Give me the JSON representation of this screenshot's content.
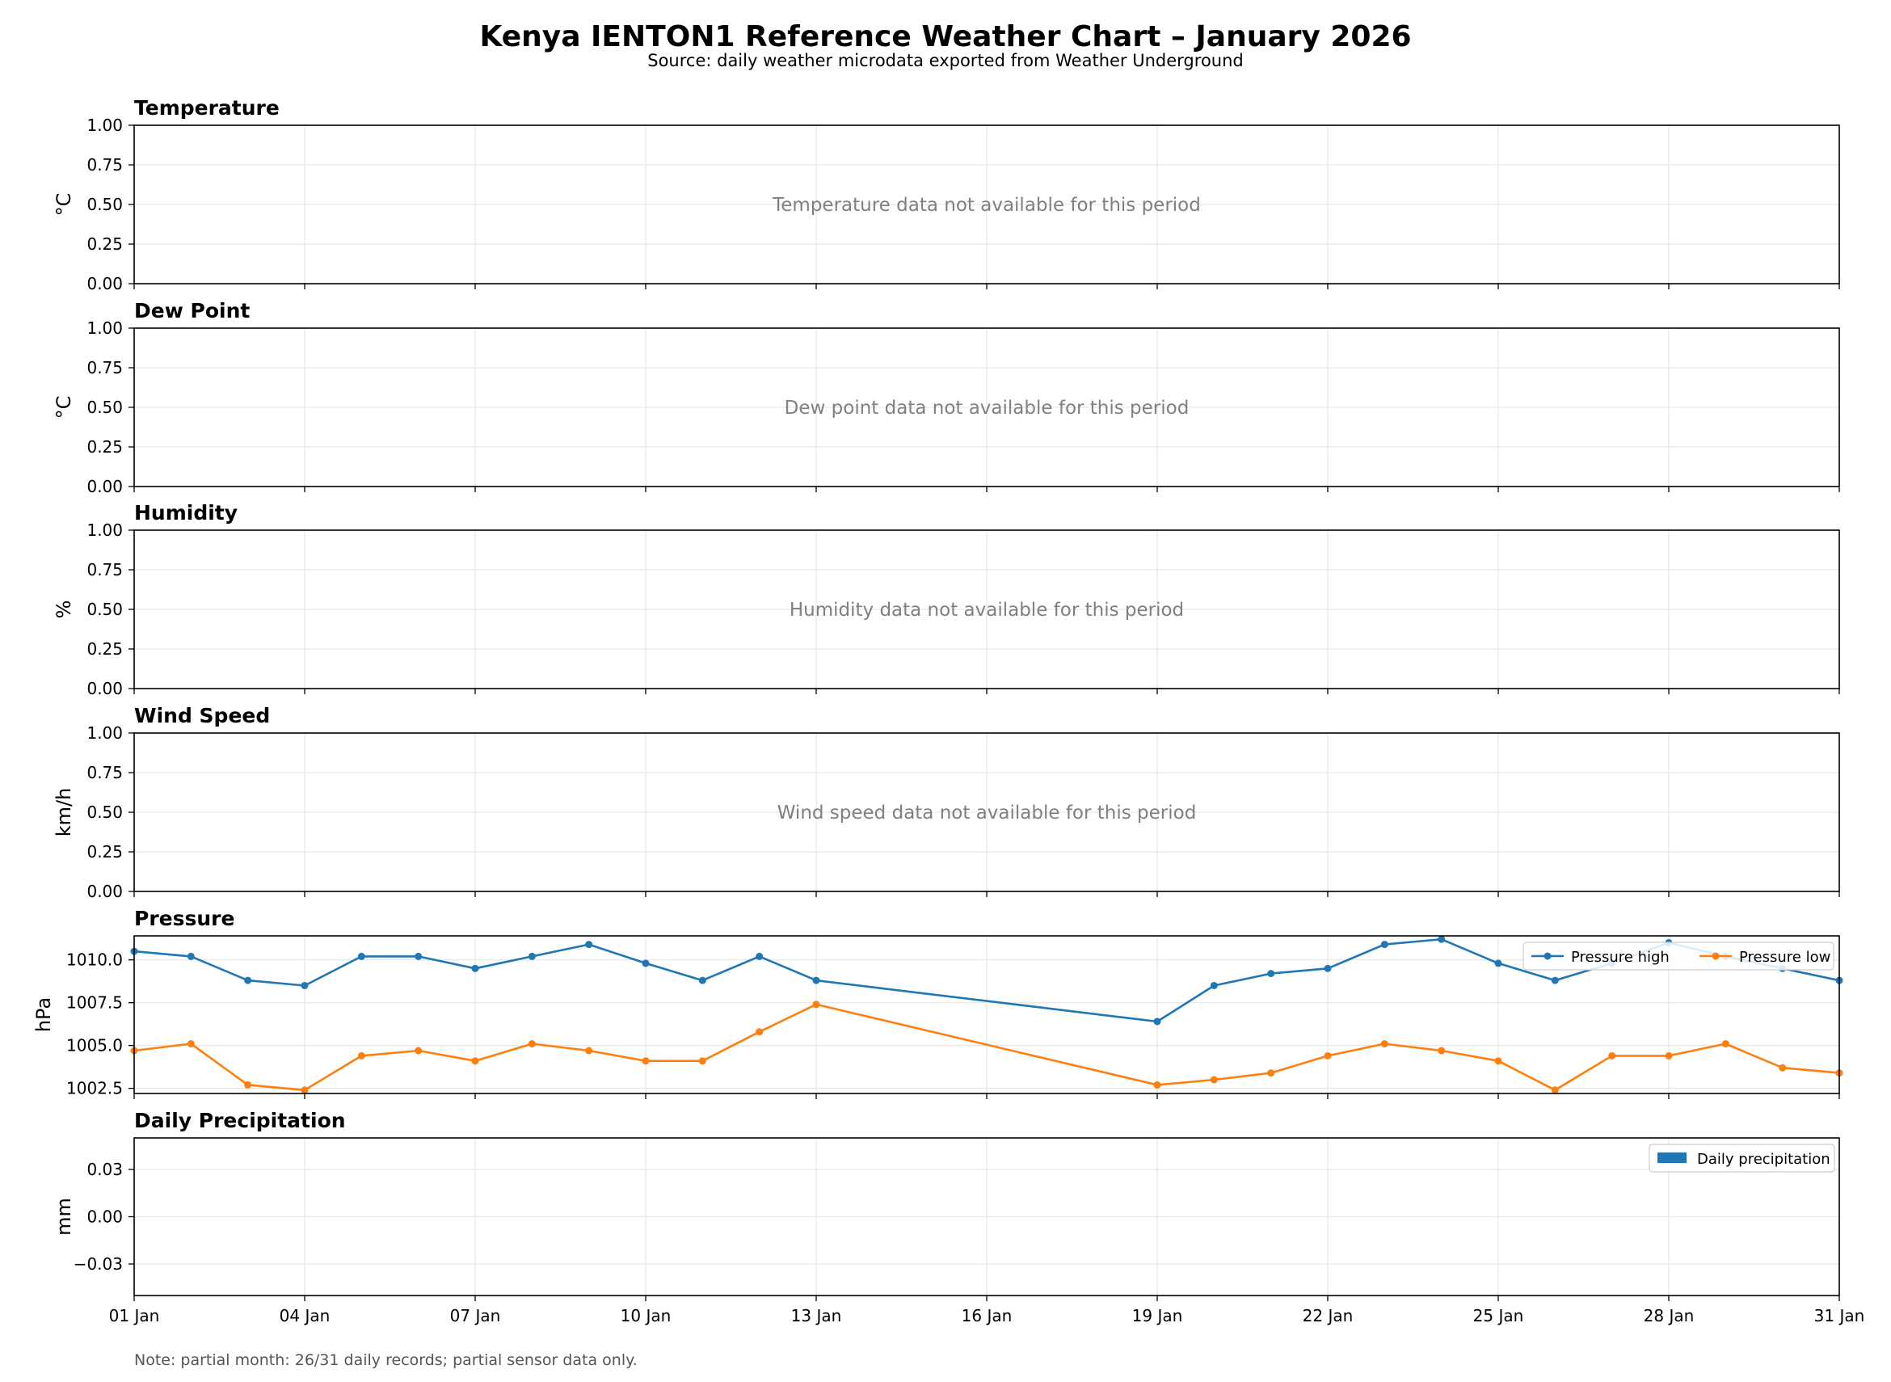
{
  "title": "Kenya IENTON1 Reference Weather Chart – January 2026",
  "subtitle": "Source: daily weather microdata exported from Weather Underground",
  "note": "Note: partial month: 26/31 daily records; partial sensor data only.",
  "colors": {
    "pressure_high": "#1f77b4",
    "pressure_low": "#ff7f0e",
    "precipitation": "#1f77b4",
    "no_data_text": "#808080",
    "grid": "#e6e6e6"
  },
  "chart_data": [
    {
      "type": "line",
      "title": "Temperature",
      "ylabel": "°C",
      "ylim": [
        0,
        1
      ],
      "yticks": [
        "0.00",
        "0.25",
        "0.50",
        "0.75",
        "1.00"
      ],
      "message": "Temperature data not available for this period",
      "series": []
    },
    {
      "type": "line",
      "title": "Dew Point",
      "ylabel": "°C",
      "ylim": [
        0,
        1
      ],
      "yticks": [
        "0.00",
        "0.25",
        "0.50",
        "0.75",
        "1.00"
      ],
      "message": "Dew point data not available for this period",
      "series": []
    },
    {
      "type": "line",
      "title": "Humidity",
      "ylabel": "%",
      "ylim": [
        0,
        1
      ],
      "yticks": [
        "0.00",
        "0.25",
        "0.50",
        "0.75",
        "1.00"
      ],
      "message": "Humidity data not available for this period",
      "series": []
    },
    {
      "type": "line",
      "title": "Wind Speed",
      "ylabel": "km/h",
      "ylim": [
        0,
        1
      ],
      "yticks": [
        "0.00",
        "0.25",
        "0.50",
        "0.75",
        "1.00"
      ],
      "message": "Wind speed data not available for this period",
      "series": []
    },
    {
      "type": "line",
      "title": "Pressure",
      "ylabel": "hPa",
      "ylim": [
        1002.2,
        1011.4
      ],
      "yticks": [
        "1002.5",
        "1005.0",
        "1007.5",
        "1010.0"
      ],
      "legend": "top-right",
      "x": [
        1,
        2,
        3,
        4,
        5,
        6,
        7,
        8,
        9,
        10,
        11,
        12,
        13,
        19,
        20,
        21,
        22,
        23,
        24,
        25,
        26,
        27,
        28,
        29,
        30,
        31
      ],
      "series": [
        {
          "name": "Pressure high",
          "values": [
            1010.5,
            1010.2,
            1008.8,
            1008.5,
            1010.2,
            1010.2,
            1009.5,
            1010.2,
            1010.9,
            1009.8,
            1008.8,
            1010.2,
            1008.8,
            1006.4,
            1008.5,
            1009.2,
            1009.5,
            1010.9,
            1011.2,
            1009.8,
            1008.8,
            1009.8,
            1011.0,
            1010.2,
            1009.5,
            1008.8
          ]
        },
        {
          "name": "Pressure low",
          "values": [
            1004.7,
            1005.1,
            1002.7,
            1002.4,
            1004.4,
            1004.7,
            1004.1,
            1005.1,
            1004.7,
            1004.1,
            1004.1,
            1005.8,
            1007.4,
            1002.7,
            1003.0,
            1003.4,
            1004.4,
            1005.1,
            1004.7,
            1004.1,
            1002.4,
            1004.4,
            1004.4,
            1005.1,
            1003.7,
            1003.4
          ]
        }
      ]
    },
    {
      "type": "bar",
      "title": "Daily Precipitation",
      "ylabel": "mm",
      "ylim": [
        -0.05,
        0.05
      ],
      "yticks": [
        "−0.03",
        "0.00",
        "0.03"
      ],
      "legend": "top-right",
      "series": [
        {
          "name": "Daily precipitation",
          "values": []
        }
      ]
    }
  ],
  "x_axis": {
    "min_day": 1,
    "max_day": 31,
    "tick_days": [
      1,
      4,
      7,
      10,
      13,
      16,
      19,
      22,
      25,
      28,
      31
    ],
    "tick_labels": [
      "01 Jan",
      "04 Jan",
      "07 Jan",
      "10 Jan",
      "13 Jan",
      "16 Jan",
      "19 Jan",
      "22 Jan",
      "25 Jan",
      "28 Jan",
      "31 Jan"
    ]
  }
}
